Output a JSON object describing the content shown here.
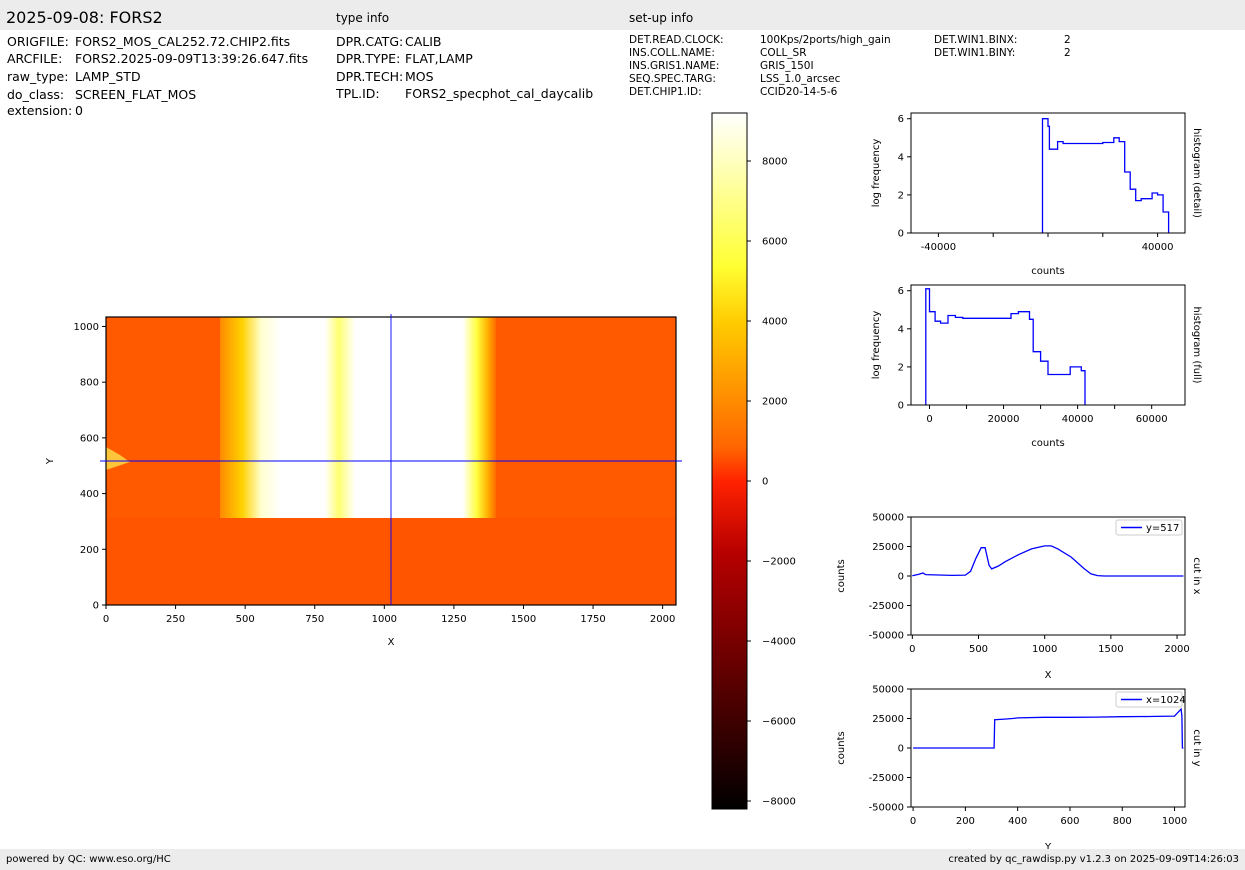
{
  "header": {
    "title": "2025-09-08: FORS2",
    "type_info_label": "type info",
    "setup_info_label": "set-up info"
  },
  "file_info": [
    {
      "key": "ORIGFILE:",
      "value": "FORS2_MOS_CAL252.72.CHIP2.fits"
    },
    {
      "key": "ARCFILE:",
      "value": "FORS2.2025-09-09T13:39:26.647.fits"
    },
    {
      "key": "raw_type:",
      "value": "LAMP_STD"
    },
    {
      "key": "do_class:",
      "value": "SCREEN_FLAT_MOS"
    },
    {
      "key": "extension:",
      "value": "0"
    }
  ],
  "type_info": [
    {
      "key": "DPR.CATG:",
      "value": "CALIB"
    },
    {
      "key": "DPR.TYPE:",
      "value": "FLAT,LAMP"
    },
    {
      "key": "DPR.TECH:",
      "value": "MOS"
    },
    {
      "key": "TPL.ID:",
      "value": "FORS2_specphot_cal_daycalib"
    }
  ],
  "setup_info": [
    {
      "key": "DET.READ.CLOCK:",
      "value": "100Kps/2ports/high_gain"
    },
    {
      "key": "INS.COLL.NAME:",
      "value": "COLL_SR"
    },
    {
      "key": "INS.GRIS1.NAME:",
      "value": "GRIS_150I"
    },
    {
      "key": "SEQ.SPEC.TARG:",
      "value": "LSS_1.0_arcsec"
    },
    {
      "key": "DET.CHIP1.ID:",
      "value": "CCID20-14-5-6"
    }
  ],
  "setup_info_2": [
    {
      "key": "DET.WIN1.BINX:",
      "value": "2"
    },
    {
      "key": "DET.WIN1.BINY:",
      "value": "2"
    }
  ],
  "footer": {
    "left": "powered by QC: www.eso.org/HC",
    "right": "created by qc_rawdisp.py v1.2.3 on 2025-09-09T14:26:03"
  },
  "colors": {
    "line": "#0000ff",
    "axis": "#000000",
    "background_bar": "#ececec"
  },
  "chart_data": [
    {
      "id": "image",
      "type": "heatmap",
      "xlabel": "X",
      "ylabel": "Y",
      "xlim": [
        0,
        2048
      ],
      "ylim": [
        0,
        1034
      ],
      "xticks": [
        0,
        250,
        500,
        750,
        1000,
        1250,
        1500,
        1750,
        2000
      ],
      "yticks": [
        0,
        200,
        400,
        600,
        800,
        1000
      ],
      "crosshair": {
        "x": 1024,
        "y": 517
      },
      "colormap": "hot",
      "colorbar": {
        "range": [
          -8200,
          9200
        ],
        "ticks": [
          -8000,
          -6000,
          -4000,
          -2000,
          0,
          2000,
          4000,
          6000,
          8000
        ]
      }
    },
    {
      "id": "hist-detail",
      "type": "line",
      "xlabel": "counts",
      "ylabel": "log frequency",
      "side_label": "histogram (detail)",
      "xlim": [
        -50000,
        50000
      ],
      "ylim": [
        0,
        6.3
      ],
      "xticks": [
        -40000,
        0,
        40000
      ],
      "xtick_labels": [
        "-40000",
        "",
        "40000"
      ],
      "yticks": [
        0,
        2,
        4,
        6
      ],
      "step_x": [
        -2000,
        0,
        500,
        3500,
        5500,
        7500,
        10000,
        15000,
        20000,
        24000,
        26000,
        28000,
        30000,
        32000,
        34000,
        38000,
        40000,
        42000,
        44000
      ],
      "step_y": [
        6.0,
        5.6,
        4.4,
        4.8,
        4.7,
        4.7,
        4.7,
        4.7,
        4.75,
        5.0,
        4.8,
        3.2,
        2.3,
        1.7,
        1.8,
        2.1,
        2.0,
        1.1,
        0
      ]
    },
    {
      "id": "hist-full",
      "type": "line",
      "xlabel": "counts",
      "ylabel": "log frequency",
      "side_label": "histogram (full)",
      "xlim": [
        -5000,
        69000
      ],
      "ylim": [
        0,
        6.3
      ],
      "xticks": [
        0,
        20000,
        40000,
        60000
      ],
      "xtick_labels": [
        "0",
        "20000",
        "40000",
        "60000"
      ],
      "yticks": [
        0,
        2,
        4,
        6
      ],
      "step_x": [
        -1000,
        0,
        1500,
        3000,
        5000,
        7000,
        9000,
        15000,
        22000,
        24000,
        27000,
        28000,
        30000,
        32000,
        35000,
        38000,
        41000,
        42000
      ],
      "step_y": [
        6.1,
        4.9,
        4.4,
        4.3,
        4.7,
        4.6,
        4.55,
        4.55,
        4.8,
        4.9,
        4.5,
        2.8,
        2.3,
        1.6,
        1.6,
        2.0,
        1.8,
        0
      ]
    },
    {
      "id": "cut-x",
      "type": "line",
      "xlabel": "X",
      "ylabel": "counts",
      "side_label": "cut in x",
      "legend": "y=517",
      "xlim": [
        -10,
        2060
      ],
      "ylim": [
        -50000,
        50000
      ],
      "xticks": [
        0,
        500,
        1000,
        1500,
        2000
      ],
      "yticks": [
        -50000,
        -25000,
        0,
        25000,
        50000
      ],
      "x": [
        0,
        50,
        80,
        100,
        300,
        400,
        440,
        480,
        520,
        550,
        580,
        600,
        650,
        700,
        800,
        900,
        1000,
        1050,
        1100,
        1200,
        1300,
        1350,
        1400,
        1450,
        1500,
        2048
      ],
      "y": [
        200,
        1500,
        2500,
        1200,
        500,
        800,
        4000,
        15000,
        24000,
        24000,
        9000,
        6000,
        8500,
        12000,
        18000,
        23000,
        25500,
        25500,
        23000,
        16000,
        6000,
        1800,
        300,
        0,
        0,
        0
      ]
    },
    {
      "id": "cut-y",
      "type": "line",
      "xlabel": "Y",
      "ylabel": "counts",
      "side_label": "cut in y",
      "legend": "x=1024",
      "xlim": [
        -8,
        1040
      ],
      "ylim": [
        -50000,
        50000
      ],
      "xticks": [
        0,
        200,
        400,
        600,
        800,
        1000
      ],
      "yticks": [
        -50000,
        -25000,
        0,
        25000,
        50000
      ],
      "x": [
        0,
        100,
        200,
        300,
        310,
        312,
        350,
        380,
        400,
        500,
        600,
        700,
        800,
        900,
        1000,
        1025,
        1028,
        1030,
        1034
      ],
      "y": [
        0,
        0,
        0,
        0,
        0,
        24000,
        24500,
        25000,
        25500,
        26000,
        26000,
        26200,
        26500,
        26700,
        27000,
        33000,
        27000,
        0,
        0
      ]
    }
  ]
}
